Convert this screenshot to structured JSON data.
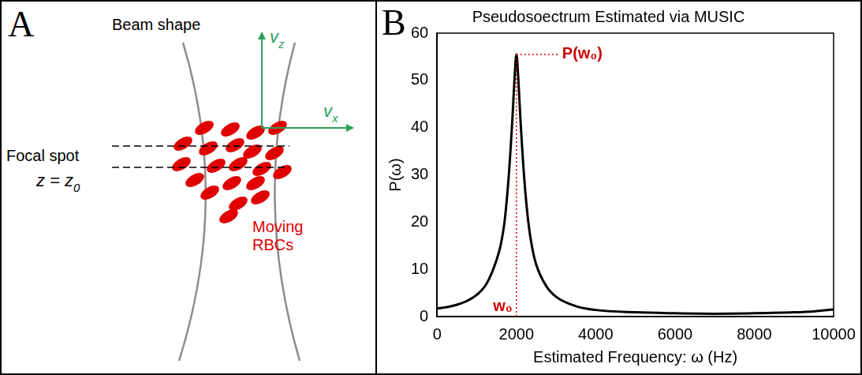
{
  "diagram": {
    "panel_label": "A",
    "beam_label": "Beam shape",
    "focal_label": "Focal spot",
    "focal_plane": {
      "base": "z = z",
      "subscript": "0"
    },
    "velocity_z": {
      "base": "v",
      "subscript": "z"
    },
    "velocity_x": {
      "base": "v",
      "subscript": "x"
    },
    "cells_label": [
      "Moving",
      "RBCs"
    ]
  },
  "chart_data": {
    "type": "line",
    "panel_label": "B",
    "title": "Pseudosoectrum Estimated via MUSIC",
    "x_label": "Estimated Frequency: ω (Hz)",
    "y_label": "P(ω)",
    "x": [
      0,
      250,
      500,
      750,
      1000,
      1250,
      1500,
      1600,
      1700,
      1800,
      1900,
      1950,
      2000,
      2050,
      2100,
      2200,
      2300,
      2400,
      2500,
      2750,
      3000,
      3500,
      4000,
      5000,
      6000,
      7000,
      8000,
      9000,
      9500,
      10000
    ],
    "values": [
      1.7,
      2.0,
      2.5,
      3.3,
      4.6,
      7.0,
      12.0,
      15.0,
      20.0,
      29.0,
      42.0,
      50.0,
      55.5,
      50.0,
      42.0,
      29.0,
      20.0,
      14.5,
      11.0,
      6.5,
      4.2,
      2.2,
      1.4,
      0.9,
      0.7,
      0.6,
      0.7,
      0.9,
      1.1,
      1.5
    ],
    "color": "#000000",
    "line_style": "solid",
    "marker": "none",
    "grid": false,
    "xlim": [
      0,
      10000
    ],
    "xticks": [
      0,
      2000,
      4000,
      6000,
      8000,
      10000
    ],
    "ylim": [
      0,
      60
    ],
    "yticks": [
      0,
      10,
      20,
      30,
      40,
      50,
      60
    ],
    "annotations": [
      {
        "text": "P(w₀)",
        "x": 2000,
        "y": 55.5,
        "color": "#cc0000"
      },
      {
        "text": "w₀",
        "x": 2000,
        "y": 0,
        "color": "#cc0000"
      }
    ]
  }
}
